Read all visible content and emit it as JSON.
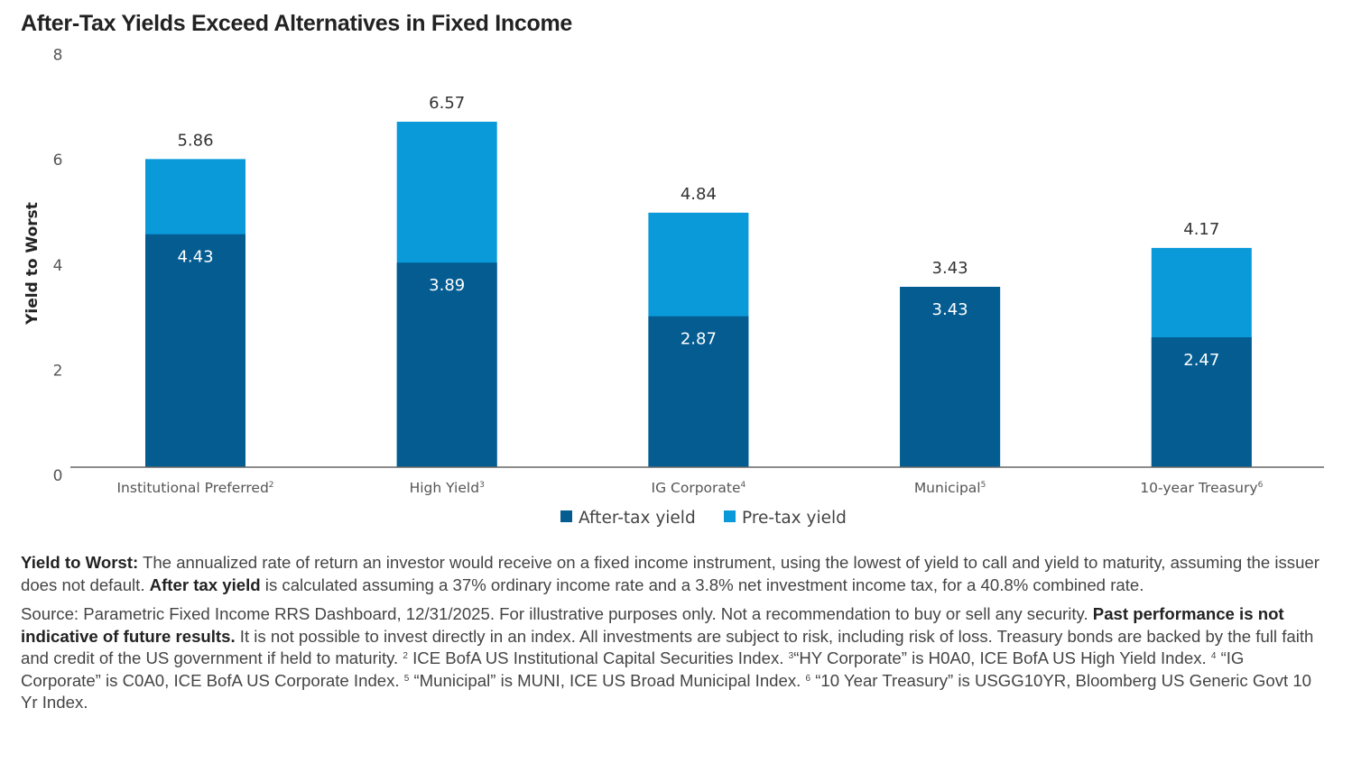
{
  "colors": {
    "after_tax": "#045C91",
    "pre_tax": "#0A9AD9",
    "axis": "#666666"
  },
  "chart_data": {
    "type": "bar",
    "stacked": "overlay",
    "title": "After-Tax Yields Exceed Alternatives in Fixed Income",
    "xlabel": "",
    "ylabel": "Yield to Worst",
    "ylim": [
      0,
      8
    ],
    "yticks": [
      0,
      2,
      4,
      6,
      8
    ],
    "grid": false,
    "legend_position": "bottom-center",
    "categories": [
      {
        "label": "Institutional Preferred",
        "footnote": "2"
      },
      {
        "label": "High Yield",
        "footnote": "3"
      },
      {
        "label": "IG Corporate",
        "footnote": "4"
      },
      {
        "label": "Municipal",
        "footnote": "5"
      },
      {
        "label": "10-year Treasury",
        "footnote": "6"
      }
    ],
    "series": [
      {
        "name": "After-tax yield",
        "values": [
          4.43,
          3.89,
          2.87,
          3.43,
          2.47
        ]
      },
      {
        "name": "Pre-tax yield",
        "values": [
          5.86,
          6.57,
          4.84,
          3.43,
          4.17
        ]
      }
    ],
    "data_labels": {
      "after_tax": [
        "4.43",
        "3.89",
        "2.87",
        "3.43",
        "2.47"
      ],
      "pre_tax": [
        "5.86",
        "6.57",
        "4.84",
        "3.43",
        "4.17"
      ]
    }
  },
  "notes": {
    "definition": {
      "term": "Yield to Worst:",
      "text1": " The annualized rate of return an investor would receive on a fixed income instrument, using the lowest of yield to call and yield to maturity, assuming the issuer does not default. ",
      "term2": "After tax yield",
      "text2": " is calculated assuming a 37% ordinary income rate and a 3.8% net investment income tax, for a 40.8% combined rate."
    },
    "source": {
      "text1": "Source: Parametric Fixed Income RRS Dashboard, 12/31/2025. For illustrative purposes only. Not a recommendation to buy or sell any security. ",
      "bold": "Past performance is not indicative of future results.",
      "text2": " It is not possible to invest directly in an index. All investments are subject to risk, including risk of loss. Treasury bonds are backed by the full faith and credit of the US government if held to maturity. ",
      "fn2_mark": "2",
      "fn2": " ICE BofA US Institutional Capital Securities Index. ",
      "fn3_mark": "3",
      "fn3": "“HY Corporate” is H0A0, ICE BofA US High Yield Index. ",
      "fn4_mark": "4",
      "fn4": " “IG Corporate” is C0A0, ICE BofA US Corporate Index. ",
      "fn5_mark": "5",
      "fn5": " “Municipal” is MUNI, ICE US Broad Municipal Index. ",
      "fn6_mark": "6",
      "fn6": " “10 Year Treasury” is USGG10YR, Bloomberg US Generic Govt 10 Yr Index."
    }
  }
}
